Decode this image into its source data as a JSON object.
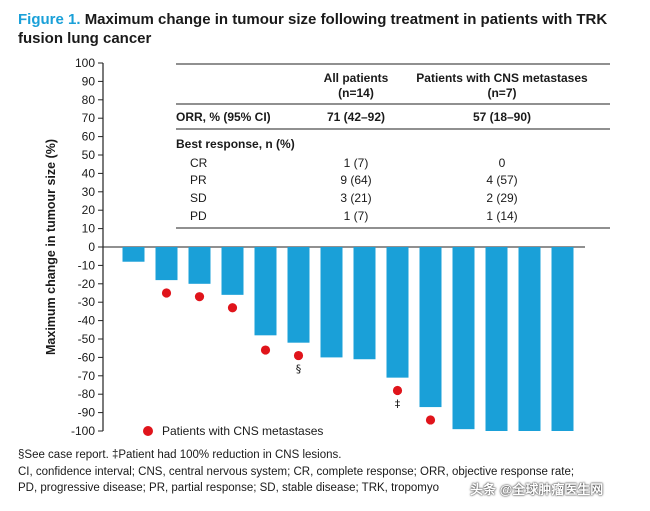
{
  "figure": {
    "label": "Figure 1.",
    "title": "Maximum change in tumour size following treatment in patients with TRK fusion lung cancer"
  },
  "chart_data": {
    "type": "bar",
    "ylabel": "Maximum change in tumour size (%)",
    "ylim": [
      -100,
      100
    ],
    "yticks": [
      100,
      90,
      80,
      70,
      60,
      50,
      40,
      30,
      20,
      10,
      0,
      -10,
      -20,
      -30,
      -40,
      -50,
      -60,
      -70,
      -80,
      -90,
      -100
    ],
    "bar_color": "#1aa0d8",
    "marker_color": "#e0141b",
    "values": [
      -8,
      -18,
      -20,
      -26,
      -48,
      -52,
      -60,
      -61,
      -71,
      -87,
      -99,
      -100,
      -100,
      -100
    ],
    "cns_markers": [
      {
        "bar": 1,
        "y": -25
      },
      {
        "bar": 2,
        "y": -27
      },
      {
        "bar": 3,
        "y": -33
      },
      {
        "bar": 4,
        "y": -56
      },
      {
        "bar": 5,
        "y": -59,
        "symbol": "§"
      },
      {
        "bar": 8,
        "y": -78,
        "symbol": "‡"
      },
      {
        "bar": 9,
        "y": -94
      }
    ],
    "legend": {
      "label": "Patients with CNS metastases",
      "position": "bottom-left"
    },
    "inset_table": {
      "columns": [
        "",
        "All patients (n=14)",
        "Patients with CNS metastases (n=7)"
      ],
      "col_head_1a": "All patients",
      "col_head_1b": "(n=14)",
      "col_head_2a": "Patients with CNS metastases",
      "col_head_2b": "(n=7)",
      "orr": {
        "label": "ORR, % (95% CI)",
        "all": "71 (42–92)",
        "cns": "57 (18–90)"
      },
      "best_response_label": "Best response, n (%)",
      "rows": [
        {
          "label": "CR",
          "all": "1 (7)",
          "cns": "0"
        },
        {
          "label": "PR",
          "all": "9 (64)",
          "cns": "4 (57)"
        },
        {
          "label": "SD",
          "all": "3 (21)",
          "cns": "2 (29)"
        },
        {
          "label": "PD",
          "all": "1 (7)",
          "cns": "1 (14)"
        }
      ]
    }
  },
  "footnotes": {
    "line1": "§See case report. ‡Patient had 100% reduction in CNS lesions.",
    "line2": "CI, confidence interval; CNS, central nervous system; CR, complete response; ORR, objective response rate;",
    "line3": "PD, progressive disease; PR, partial response; SD, stable disease; TRK, tropomyo"
  },
  "watermark": "头条 @全球肿瘤医生网"
}
